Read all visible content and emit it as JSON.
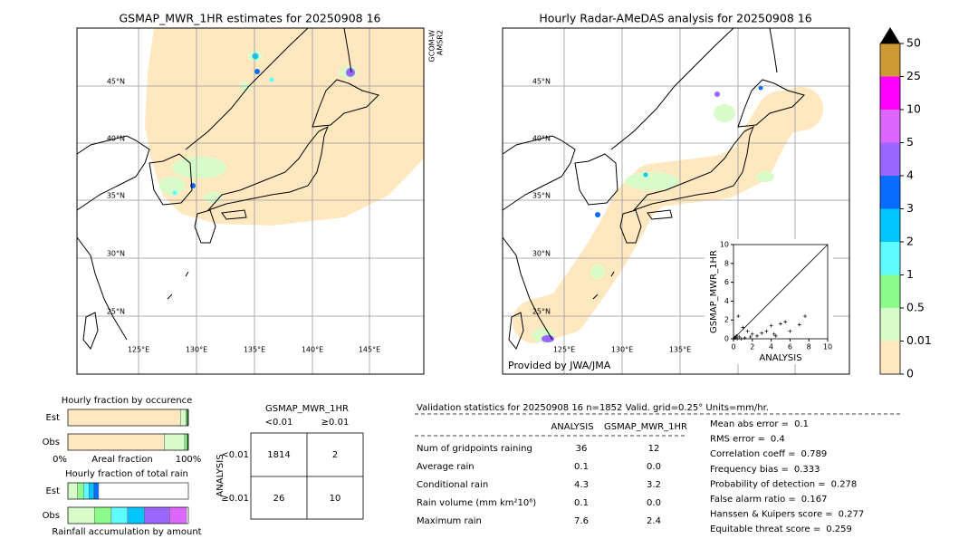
{
  "left_map": {
    "title": "GSMAP_MWR_1HR estimates for 20250908 16",
    "side_label": [
      "GCOM-W",
      "AMSR2"
    ],
    "lat_labels": [
      "45°N",
      "40°N",
      "35°N",
      "30°N",
      "25°N"
    ],
    "lon_labels": [
      "125°E",
      "130°E",
      "135°E",
      "140°E",
      "145°E"
    ]
  },
  "right_map": {
    "title": "Hourly Radar-AMeDAS analysis for 20250908 16",
    "lat_labels": [
      "45°N",
      "40°N",
      "35°N",
      "30°N",
      "25°N"
    ],
    "lon_labels": [
      "125°E",
      "130°E",
      "135°E"
    ],
    "credit": "Provided by JWA/JMA"
  },
  "colorbar": {
    "levels": [
      0,
      0.01,
      0.5,
      1,
      2,
      3,
      4,
      5,
      10,
      25,
      50
    ],
    "colors": [
      "#ffe8bf",
      "#d7fcc9",
      "#8cfb8c",
      "#5ffbff",
      "#00c6ff",
      "#0a6bff",
      "#9966ff",
      "#dd66ff",
      "#ff00ff",
      "#cc9933"
    ],
    "extend_color": "#000000"
  },
  "scatter": {
    "type": "scatter",
    "xlabel": "ANALYSIS",
    "ylabel": "GSMAP_MWR_1HR",
    "xlim": [
      0,
      10
    ],
    "ylim": [
      0,
      10
    ],
    "xticks": [
      0,
      2,
      4,
      6,
      8,
      10
    ],
    "yticks": [
      0,
      2,
      4,
      6,
      8,
      10
    ],
    "x": [
      0.1,
      0.2,
      0.3,
      0.4,
      0.6,
      0.8,
      1.0,
      1.2,
      1.5,
      1.8,
      2.0,
      2.5,
      3.0,
      3.5,
      4.0,
      4.3,
      4.5,
      5.0,
      5.5,
      6.0,
      7.0,
      7.6,
      0.5
    ],
    "y": [
      0.1,
      0.1,
      0.3,
      0.0,
      0.2,
      0.0,
      1.2,
      0.1,
      0.8,
      0.2,
      0.5,
      0.3,
      0.6,
      0.8,
      1.4,
      0.5,
      0.3,
      1.6,
      1.8,
      0.8,
      1.5,
      2.4,
      2.4
    ]
  },
  "occurrence": {
    "title": "Hourly fraction by occurence",
    "rows": [
      "Est",
      "Obs"
    ],
    "axis_labels": [
      "0%",
      "Areal fraction",
      "100%"
    ],
    "est": [
      0.935,
      0.045,
      0.01,
      0.01
    ],
    "obs": [
      0.8,
      0.17,
      0.02,
      0.01
    ],
    "colors": [
      "#ffe8bf",
      "#d7fcc9",
      "#8cfb8c",
      "#006400"
    ]
  },
  "total_rain": {
    "title": "Hourly fraction of total rain",
    "rows": [
      "Est",
      "Obs"
    ],
    "footer": "Rainfall accumulation by amount",
    "est": [
      0,
      0.08,
      0.05,
      0.045,
      0.04,
      0.04,
      0,
      0,
      0,
      0
    ],
    "obs": [
      0,
      0.22,
      0.14,
      0.135,
      0.14,
      0,
      0.21,
      0.14,
      0,
      0
    ],
    "colors": [
      "#ffe8bf",
      "#d7fcc9",
      "#8cfb8c",
      "#5ffbff",
      "#00c6ff",
      "#0a6bff",
      "#9966ff",
      "#dd66ff",
      "#ff00ff",
      "#cc9933"
    ]
  },
  "contingency": {
    "title": "GSMAP_MWR_1HR",
    "col_headers": [
      "<0.01",
      "≥0.01"
    ],
    "row_title": "ANALYSIS",
    "row_headers": [
      "<0.01",
      "≥0.01"
    ],
    "cells": [
      [
        "1814",
        "2"
      ],
      [
        "26",
        "10"
      ]
    ]
  },
  "validation": {
    "header": "Validation statistics for 20250908 16  n=1852 Valid. grid=0.25° Units=mm/hr.",
    "columns": [
      "ANALYSIS",
      "GSMAP_MWR_1HR"
    ],
    "rows": [
      [
        "Num of gridpoints raining",
        "36",
        "12"
      ],
      [
        "Average rain",
        "0.1",
        "0.0"
      ],
      [
        "Conditional rain",
        "4.3",
        "3.2"
      ],
      [
        "Rain volume (mm km²10⁶)",
        "0.1",
        "0.0"
      ],
      [
        "Maximum rain",
        "7.6",
        "2.4"
      ]
    ],
    "scores": [
      [
        "Mean abs error =",
        "0.1"
      ],
      [
        "RMS error =",
        "0.4"
      ],
      [
        "Correlation coeff =",
        "0.789"
      ],
      [
        "Frequency bias =",
        "0.333"
      ],
      [
        "Probability of detection =",
        "0.278"
      ],
      [
        "False alarm ratio =",
        "0.167"
      ],
      [
        "Hanssen & Kuipers score =",
        "0.277"
      ],
      [
        "Equitable threat score =",
        "0.259"
      ]
    ]
  }
}
